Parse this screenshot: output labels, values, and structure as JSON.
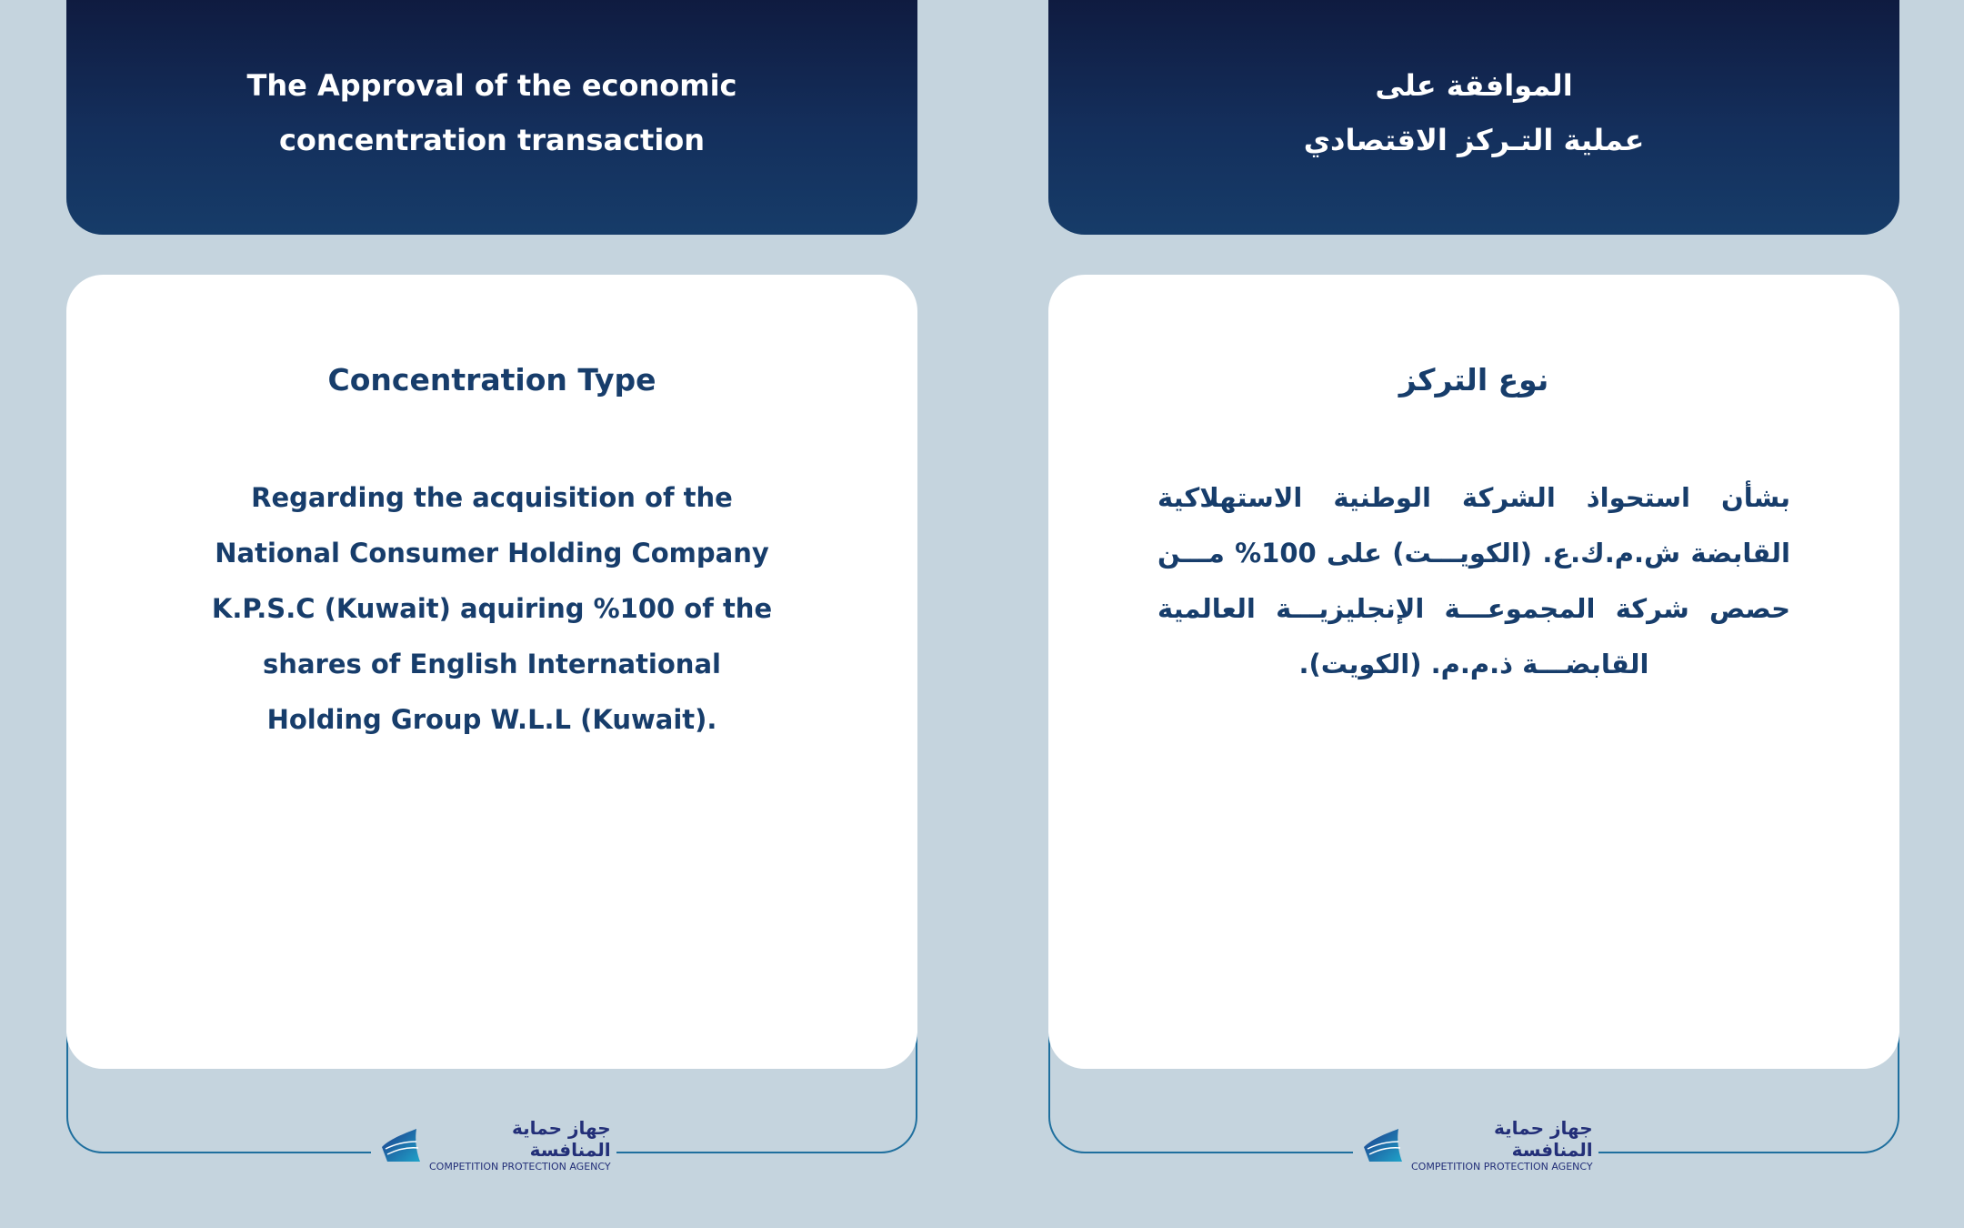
{
  "english": {
    "header_line1": "The Approval of the economic",
    "header_line2": "concentration transaction",
    "section_title": "Concentration Type",
    "body": "Regarding the acquisition of the National Consumer Holding Company K.P.S.C (Kuwait) aquiring %100 of the shares of English International Holding Group W.L.L (Kuwait)."
  },
  "arabic": {
    "header_line1": "الموافقة على",
    "header_line2": "عملية التـركز الاقتصادي",
    "section_title": "نوع التركز",
    "body": "بشأن استحواذ الشركة الوطنية الاستهلاكية القابضة ش.م.ك.ع. (الكويـــت) على 100% مـــن حصص شركة المجموعـــة الإنجليزيـــة العالمية القابضـــة ذ.م.م. (الكويت)."
  },
  "logo": {
    "arabic": "جهاز حماية المنافسة",
    "english": "COMPETITION PROTECTION AGENCY",
    "icon": "ship-sail-icon"
  },
  "colors": {
    "background": "#c5d4de",
    "header_top": "#0f1b40",
    "header_bottom": "#163c69",
    "text": "#173d6b",
    "frame": "#1f6f9e"
  }
}
